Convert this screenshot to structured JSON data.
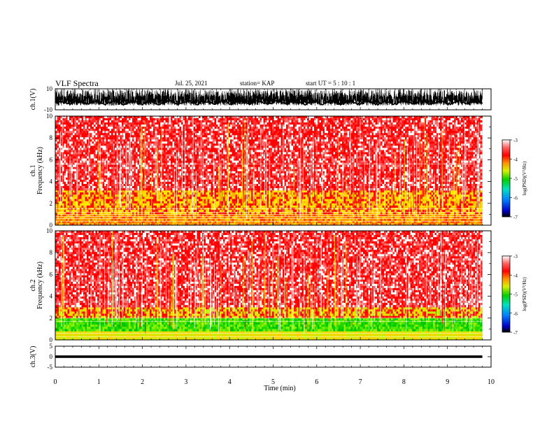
{
  "header": {
    "title": "VLF Spectra",
    "date": "Jul. 25, 2021",
    "station": "station= KAP",
    "start": "start UT = 5 : 10 : 1"
  },
  "chart_data": [
    {
      "type": "line",
      "panel": "ch1-waveform",
      "ylabel": "ch.1(V)",
      "ylim": [
        -10,
        10
      ],
      "yticks": [
        "10",
        "-10"
      ],
      "xlim": [
        0,
        10
      ],
      "description_note": "dense noisy waveform, mostly around -5 to +8 V, ending near 9.8 min"
    },
    {
      "type": "heatmap",
      "panel": "ch1-spectrogram",
      "ylabel": "ch.1",
      "ylabel2": "Frequency (kHz)",
      "ylim": [
        0,
        10
      ],
      "yticks": [
        "0",
        "2",
        "4",
        "6",
        "8",
        "10"
      ],
      "xlim": [
        0,
        10
      ],
      "colorbar": {
        "min": -7,
        "max": -3,
        "ticks": [
          "-3",
          "-4",
          "-5",
          "-6",
          "-7"
        ],
        "label": "log(PSD)(V²/Hz)"
      },
      "bands_khz": [
        [
          0,
          1.0,
          "orange"
        ],
        [
          1.0,
          3.2,
          "yellow-red"
        ],
        [
          3.2,
          10,
          "red-white"
        ]
      ]
    },
    {
      "type": "heatmap",
      "panel": "ch2-spectrogram",
      "ylabel": "ch.2",
      "ylabel2": "Frequency (kHz)",
      "ylim": [
        0,
        10
      ],
      "yticks": [
        "0",
        "2",
        "4",
        "6",
        "8",
        "10"
      ],
      "xlim": [
        0,
        10
      ],
      "colorbar": {
        "min": -7,
        "max": -3,
        "ticks": [
          "-3",
          "-4",
          "-5",
          "-6",
          "-7"
        ],
        "label": "log(PSD)(V²/Hz)"
      },
      "bands_khz": [
        [
          0,
          0.8,
          "yellow"
        ],
        [
          0.8,
          2.0,
          "green"
        ],
        [
          2.0,
          3.0,
          "yellow-red"
        ],
        [
          3.0,
          10,
          "red-white"
        ]
      ]
    },
    {
      "type": "line",
      "panel": "ch3-waveform",
      "ylabel": "ch.3(V)",
      "ylim": [
        -5,
        5
      ],
      "yticks": [
        "5",
        "0",
        "-5"
      ],
      "xlim": [
        0,
        10
      ],
      "level": [
        -0.6,
        0.6
      ]
    }
  ],
  "xaxis": {
    "label": "Time (min)",
    "ticks": [
      "0",
      "1",
      "2",
      "3",
      "4",
      "5",
      "6",
      "7",
      "8",
      "9",
      "10"
    ]
  }
}
